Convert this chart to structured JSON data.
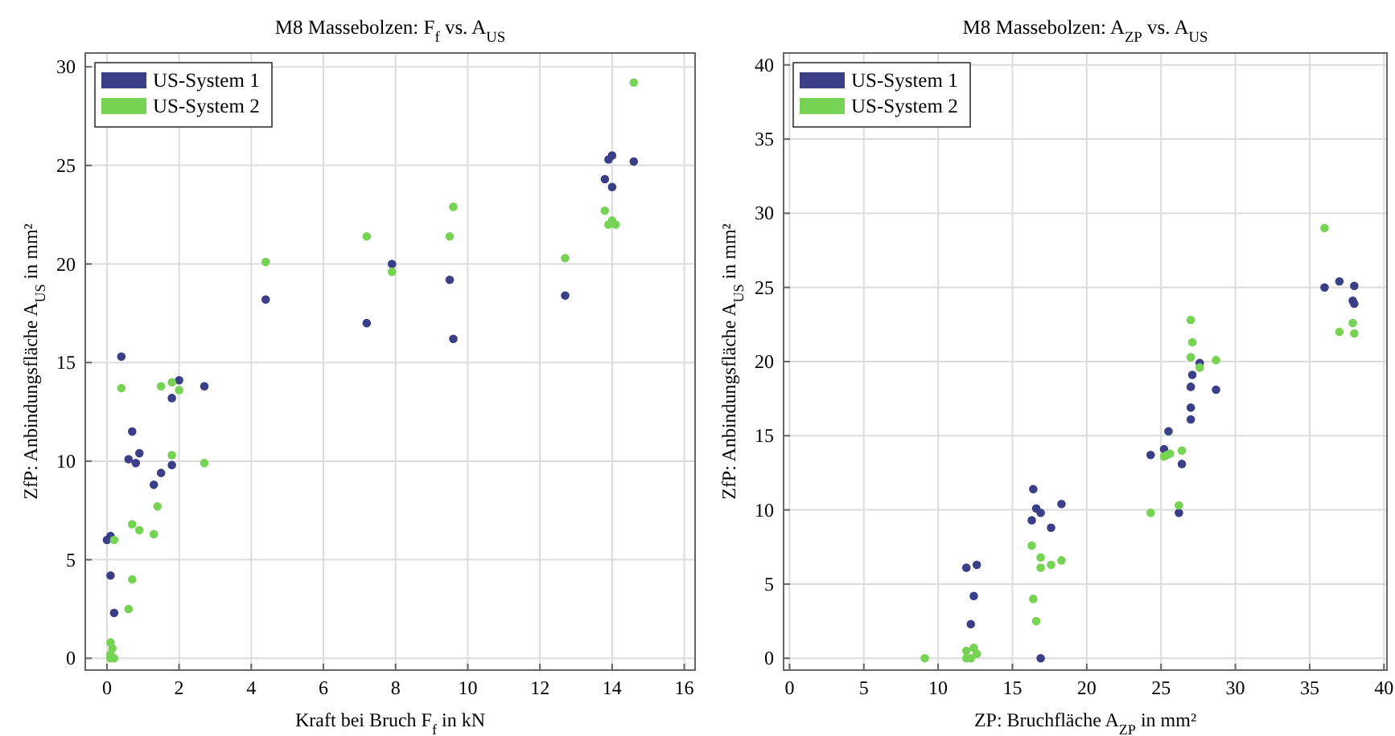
{
  "chart_data": [
    {
      "type": "scatter",
      "title": "M8 Massebolzen: F$_{f}$ vs. A$_{US}$",
      "xlabel": "Kraft bei Bruch F$_{f}$ in kN",
      "ylabel": "ZfP: Anbindungsfläche A$_{US}$ in mm²",
      "xlim": [
        -0.6,
        16.3
      ],
      "xticks": [
        0,
        2,
        4,
        6,
        8,
        10,
        12,
        14,
        16
      ],
      "ylim": [
        -0.6,
        30.7
      ],
      "yticks": [
        0,
        5,
        10,
        15,
        20,
        25,
        30
      ],
      "grid": true,
      "legend": "top left",
      "marker": "circle",
      "series": [
        {
          "name": "US-System 1",
          "color": "#3a3f88",
          "x": [
            0.1,
            0.0,
            0.1,
            0.2,
            0.4,
            0.7,
            0.6,
            0.8,
            0.9,
            1.3,
            1.5,
            1.8,
            1.8,
            2.0,
            2.7,
            4.4,
            7.2,
            7.9,
            9.5,
            9.6,
            12.7,
            13.8,
            13.9,
            14.0,
            14.0,
            14.6
          ],
          "values": [
            6.2,
            6.0,
            4.2,
            2.3,
            15.3,
            11.5,
            10.1,
            9.9,
            10.4,
            8.8,
            9.4,
            13.2,
            9.8,
            14.1,
            13.8,
            18.2,
            17.0,
            20.0,
            19.2,
            16.2,
            18.4,
            24.3,
            25.3,
            25.5,
            23.9,
            25.2
          ]
        },
        {
          "name": "US-System 2",
          "color": "#77d353",
          "x": [
            0.1,
            0.1,
            0.15,
            0.1,
            0.2,
            0.2,
            0.4,
            0.6,
            0.7,
            0.7,
            0.9,
            1.3,
            1.4,
            1.5,
            1.8,
            1.8,
            2.0,
            2.7,
            4.4,
            7.2,
            7.9,
            9.5,
            9.6,
            12.7,
            13.8,
            13.9,
            14.0,
            14.1,
            14.6
          ],
          "values": [
            0.0,
            0.2,
            0.5,
            0.8,
            0.0,
            6.0,
            13.7,
            2.5,
            4.0,
            6.8,
            6.5,
            6.3,
            7.7,
            13.8,
            14.0,
            10.3,
            13.6,
            9.9,
            20.1,
            21.4,
            19.6,
            21.4,
            22.9,
            20.3,
            22.7,
            22.0,
            22.2,
            22.0,
            29.2
          ]
        }
      ]
    },
    {
      "type": "scatter",
      "title": "M8 Massebolzen: A$_{ZP}$ vs. A$_{US}$",
      "xlabel": "ZP: Bruchfläche A$_{ZP}$ in mm²",
      "ylabel": "ZfP: Anbindungsfläche A$_{US}$ in mm²",
      "xlim": [
        -0.4,
        40.2
      ],
      "xticks": [
        0,
        5,
        10,
        15,
        20,
        25,
        30,
        35,
        40
      ],
      "ylim": [
        -0.8,
        40.8
      ],
      "yticks": [
        0,
        5,
        10,
        15,
        20,
        25,
        30,
        35,
        40
      ],
      "grid": true,
      "legend": "top left",
      "marker": "circle",
      "series": [
        {
          "name": "US-System 1",
          "color": "#3a3f88",
          "x": [
            16.4,
            16.6,
            16.9,
            16.3,
            18.3,
            17.6,
            11.9,
            12.6,
            12.4,
            12.2,
            16.9,
            24.3,
            25.2,
            25.5,
            26.4,
            26.2,
            27.0,
            27.0,
            27.0,
            27.1,
            27.6,
            28.7,
            36.0,
            37.0,
            38.0,
            37.9,
            38.0
          ],
          "values": [
            11.4,
            10.1,
            9.8,
            9.3,
            10.4,
            8.8,
            6.1,
            6.3,
            4.2,
            2.3,
            0.0,
            13.7,
            14.1,
            15.3,
            13.1,
            9.8,
            16.1,
            16.9,
            18.3,
            19.1,
            19.9,
            18.1,
            25.0,
            25.4,
            25.1,
            24.1,
            23.9
          ]
        },
        {
          "name": "US-System 2",
          "color": "#77d353",
          "x": [
            9.1,
            11.9,
            12.4,
            12.6,
            11.9,
            12.2,
            16.3,
            16.9,
            16.9,
            17.6,
            18.3,
            16.4,
            16.6,
            24.3,
            25.2,
            25.4,
            25.6,
            26.4,
            26.2,
            27.0,
            27.1,
            27.0,
            27.6,
            28.7,
            36.0,
            37.0,
            37.9,
            38.0
          ],
          "values": [
            0.0,
            0.5,
            0.7,
            0.3,
            0.0,
            0.0,
            7.6,
            6.8,
            6.1,
            6.3,
            6.6,
            4.0,
            2.5,
            9.8,
            13.6,
            13.7,
            13.8,
            14.0,
            10.3,
            22.8,
            21.3,
            20.3,
            19.6,
            20.1,
            29.0,
            22.0,
            22.6,
            21.9
          ]
        }
      ]
    }
  ]
}
